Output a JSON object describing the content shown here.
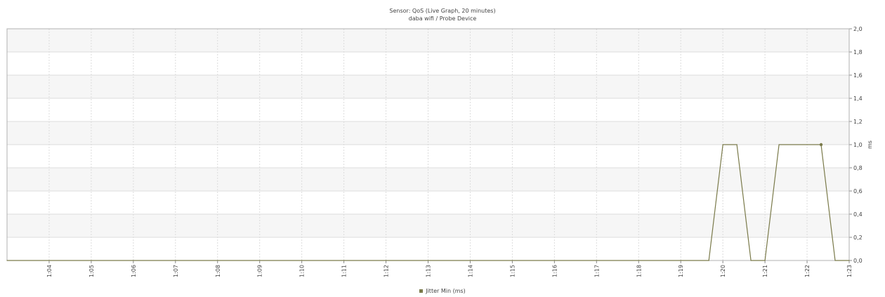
{
  "header": {
    "title": "Sensor: QoS (Live Graph, 20 minutes)",
    "subtitle": "daba wifi / Probe Device"
  },
  "colors": {
    "line": "#7a7a4a",
    "band": "#f6f6f6",
    "grid": "#dcdcdc",
    "border": "#b0b0b0"
  },
  "chart_data": {
    "type": "line",
    "title": "Sensor: QoS (Live Graph, 20 minutes)",
    "subtitle": "daba wifi / Probe Device",
    "xlabel": "",
    "ylabel": "ms",
    "x_ticks": [
      "1:04",
      "1:05",
      "1:06",
      "1:07",
      "1:08",
      "1:09",
      "1:10",
      "1:11",
      "1:12",
      "1:13",
      "1:14",
      "1:15",
      "1:16",
      "1:17",
      "1:18",
      "1:19",
      "1:20",
      "1:21",
      "1:22",
      "1:23"
    ],
    "y_ticks": [
      "0,0",
      "0,2",
      "0,4",
      "0,6",
      "0,8",
      "1,0",
      "1,2",
      "1,4",
      "1,6",
      "1,8",
      "2,0"
    ],
    "ylim": [
      0,
      2
    ],
    "xlim": [
      "1:03:00",
      "1:23:00"
    ],
    "grid": true,
    "y_axis_side": "right",
    "legend_position": "bottom-center",
    "series": [
      {
        "name": "Jitter Min (ms)",
        "color": "#7a7a4a",
        "x": [
          "1:03:00",
          "1:19:40",
          "1:20:00",
          "1:20:20",
          "1:20:40",
          "1:21:00",
          "1:21:20",
          "1:22:20",
          "1:22:40",
          "1:23:00"
        ],
        "y": [
          0.0,
          0.0,
          1.0,
          1.0,
          0.0,
          0.0,
          1.0,
          1.0,
          0.0,
          0.0
        ],
        "marker_at": "1:22:20"
      }
    ]
  }
}
